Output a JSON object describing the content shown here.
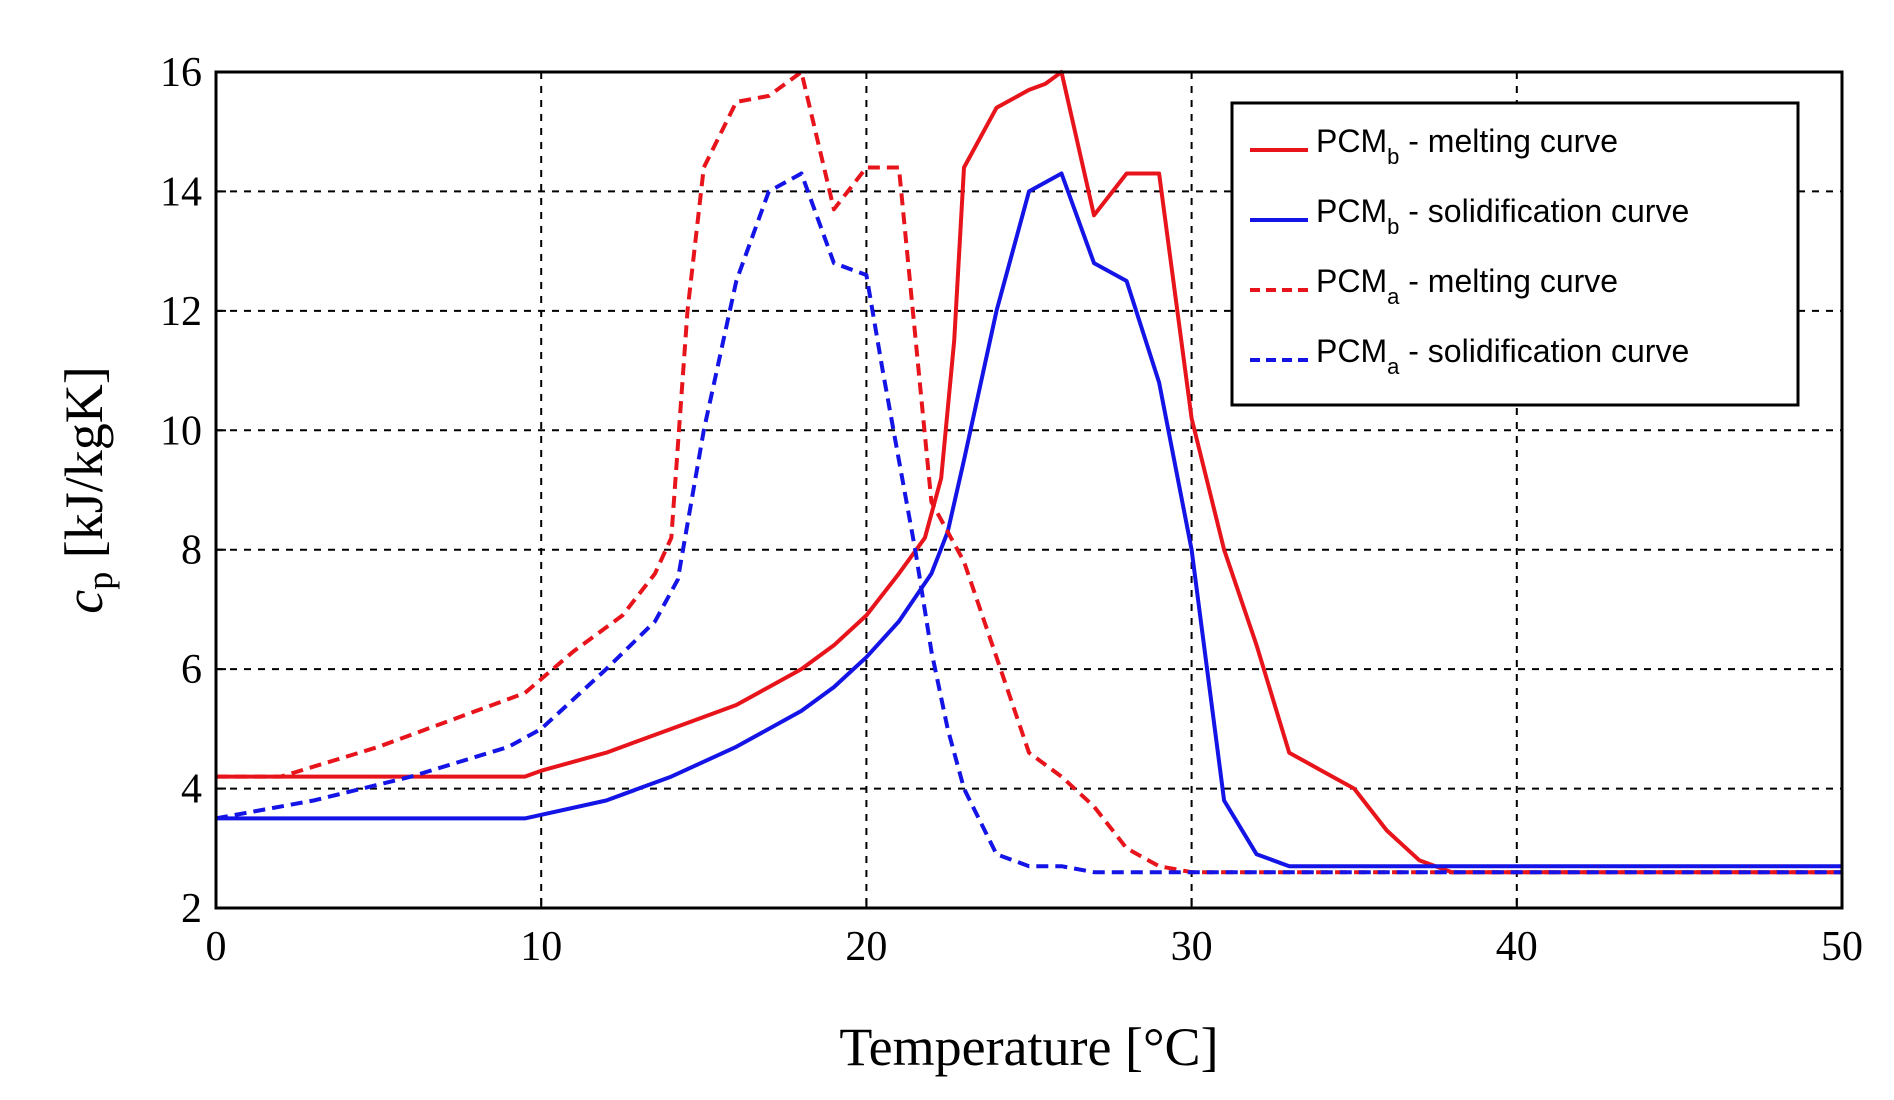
{
  "chart_data": {
    "type": "line",
    "xlabel": "Temperature [°C]",
    "ylabel_main": "c",
    "ylabel_sub": "p",
    "ylabel_unit": " [kJ/kgK]",
    "xlim": [
      0,
      50
    ],
    "ylim": [
      2,
      16
    ],
    "xticks": [
      "0",
      "10",
      "20",
      "30",
      "40",
      "50"
    ],
    "yticks": [
      "2",
      "4",
      "6",
      "8",
      "10",
      "12",
      "14",
      "16"
    ],
    "grid": true,
    "legend_position": "top-right",
    "series": [
      {
        "name": "PCMb - melting curve",
        "legend_base": "PCM",
        "legend_sub": "b",
        "legend_rest": " - melting curve",
        "color": "#e8141b",
        "dash": false,
        "x": [
          0,
          9.5,
          10,
          12,
          14,
          16,
          17,
          18,
          19,
          20,
          21,
          21.8,
          22.3,
          22.7,
          23,
          24,
          25,
          25.5,
          26,
          27,
          28,
          29,
          30,
          31,
          32,
          33,
          34,
          35,
          36,
          37,
          38,
          50
        ],
        "y": [
          4.2,
          4.2,
          4.3,
          4.6,
          5.0,
          5.4,
          5.7,
          6.0,
          6.4,
          6.9,
          7.6,
          8.2,
          9.2,
          11.5,
          14.4,
          15.4,
          15.7,
          15.8,
          16.0,
          13.6,
          14.3,
          14.3,
          10.2,
          8.0,
          6.4,
          4.6,
          4.3,
          4.0,
          3.3,
          2.8,
          2.6,
          2.6
        ]
      },
      {
        "name": "PCMb - solidification curve",
        "legend_base": "PCM",
        "legend_sub": "b",
        "legend_rest": " - solidification curve",
        "color": "#1414e6",
        "dash": false,
        "x": [
          0,
          9.5,
          12,
          14,
          16,
          17,
          18,
          19,
          20,
          21,
          22,
          22.5,
          23,
          24,
          25,
          26,
          27,
          28,
          29,
          30,
          31,
          32,
          33,
          50
        ],
        "y": [
          3.5,
          3.5,
          3.8,
          4.2,
          4.7,
          5.0,
          5.3,
          5.7,
          6.2,
          6.8,
          7.6,
          8.3,
          9.5,
          12.0,
          14.0,
          14.3,
          12.8,
          12.5,
          10.8,
          8.0,
          3.8,
          2.9,
          2.7,
          2.7
        ]
      },
      {
        "name": "PCMa - melting curve",
        "legend_base": "PCM",
        "legend_sub": "a",
        "legend_rest": " - melting curve",
        "color": "#e8141b",
        "dash": true,
        "x": [
          0,
          2,
          5,
          8,
          9.5,
          11,
          12.5,
          13.5,
          14,
          14.5,
          15,
          16,
          17,
          18,
          19,
          20,
          21,
          22,
          23,
          24,
          25,
          26,
          27,
          28,
          29,
          30,
          50
        ],
        "y": [
          4.2,
          4.2,
          4.7,
          5.3,
          5.6,
          6.3,
          6.9,
          7.6,
          8.2,
          12.0,
          14.4,
          15.5,
          15.6,
          16.0,
          13.7,
          14.4,
          14.4,
          8.8,
          7.8,
          6.2,
          4.6,
          4.2,
          3.7,
          3.0,
          2.7,
          2.6,
          2.6
        ]
      },
      {
        "name": "PCMa - solidification curve",
        "legend_base": "PCM",
        "legend_sub": "a",
        "legend_rest": " - solidification curve",
        "color": "#1414e6",
        "dash": true,
        "x": [
          0,
          3,
          6,
          9,
          10,
          12,
          13.5,
          14.2,
          15,
          16,
          17,
          18,
          19,
          20,
          20.5,
          21,
          21.5,
          22,
          22.5,
          23,
          24,
          25,
          26,
          27,
          28,
          50
        ],
        "y": [
          3.5,
          3.8,
          4.2,
          4.7,
          5.0,
          6.0,
          6.8,
          7.5,
          10.0,
          12.5,
          14.0,
          14.3,
          12.8,
          12.6,
          11.0,
          9.5,
          8.0,
          6.3,
          5.0,
          4.0,
          2.9,
          2.7,
          2.7,
          2.6,
          2.6,
          2.6
        ]
      }
    ]
  }
}
